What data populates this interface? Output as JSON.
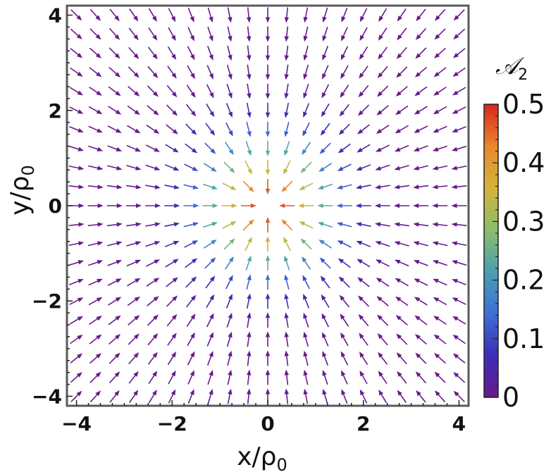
{
  "chart_data": {
    "type": "vector_field",
    "xlabel": "x/ρ",
    "xlabel_sub": "0",
    "ylabel": "y/ρ",
    "ylabel_sub": "0",
    "xlim": [
      -4.2,
      4.2
    ],
    "ylim": [
      -4.2,
      4.2
    ],
    "x_ticks": [
      {
        "value": -4,
        "label": "−4"
      },
      {
        "value": -2,
        "label": "−2"
      },
      {
        "value": 0,
        "label": "0"
      },
      {
        "value": 2,
        "label": "2"
      },
      {
        "value": 4,
        "label": "4"
      }
    ],
    "y_ticks": [
      {
        "value": -4,
        "label": "−4"
      },
      {
        "value": -2,
        "label": "−2"
      },
      {
        "value": 0,
        "label": "0"
      },
      {
        "value": 2,
        "label": "2"
      },
      {
        "value": 4,
        "label": "4"
      }
    ],
    "grid": {
      "x_start": -4.0,
      "y_start": -4.0,
      "step": 0.4,
      "count": 21
    },
    "field": "radially inward, pointing toward the origin",
    "magnitude_model": {
      "formula": "A2 = 0.5 * exp(-r^2 / 2)",
      "r_unit": "ρ0"
    },
    "colorbar": {
      "title": "𝒜",
      "title_sub": "2",
      "min": 0,
      "max": 0.5,
      "ticks": [
        {
          "value": 0,
          "label": "0"
        },
        {
          "value": 0.1,
          "label": "0.1"
        },
        {
          "value": 0.2,
          "label": "0.2"
        },
        {
          "value": 0.3,
          "label": "0.3"
        },
        {
          "value": 0.4,
          "label": "0.4"
        },
        {
          "value": 0.5,
          "label": "0.5"
        }
      ],
      "colormap": [
        "#6a1a8c",
        "#3b2fb8",
        "#3d6fd6",
        "#4aa0b0",
        "#8bbd6a",
        "#d4b43a",
        "#e8872c",
        "#d8261f"
      ]
    },
    "grid_lines": false,
    "legend": "none"
  }
}
